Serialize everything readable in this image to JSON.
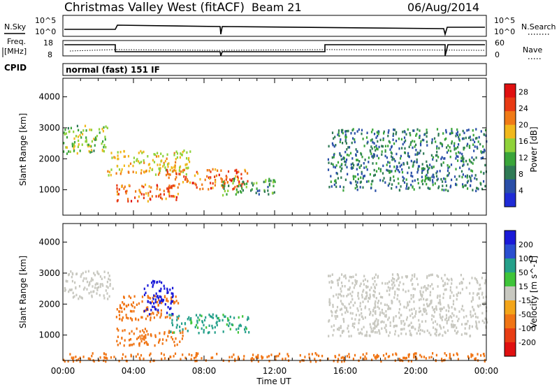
{
  "header": {
    "station": "Christmas Valley West (fitACF)",
    "beam": "Beam 21",
    "date": "06/Aug/2014"
  },
  "panel_labels": {
    "nsky": "N.Sky",
    "nsearch": "N.Search",
    "freq_line1": "Freq.",
    "freq_line2": "[MHz]",
    "nave": "Nave",
    "cpid": "CPID",
    "cpid_value": "normal (fast) 151 IF",
    "ylabel": "Slant Range [km]",
    "xlabel": "Time UT"
  },
  "noise_panel": {
    "left_ticks": [
      "10^5",
      "10^0"
    ],
    "right_ticks": [
      "10^5",
      "10^0"
    ]
  },
  "freq_panel": {
    "left_ticks": [
      "18",
      "8"
    ],
    "right_ticks": [
      "60",
      "0"
    ]
  },
  "colors": {
    "power": [
      "#1f2bd6",
      "#2a4fa8",
      "#2f7a55",
      "#3aa53a",
      "#8fd23a",
      "#f1b81c",
      "#f07a16",
      "#e83a14",
      "#e01010"
    ],
    "velocity": [
      "#1a1ad8",
      "#2a4fd0",
      "#25a08a",
      "#3fc43a",
      "#c8c8c0",
      "#f3a51a",
      "#f07515",
      "#e83d14",
      "#e01010"
    ]
  },
  "chart_data": [
    {
      "type": "heatmap",
      "title": "Power",
      "xlabel": "Time UT",
      "ylabel": "Slant Range [km]",
      "x_ticks": [
        "00:00",
        "04:00",
        "08:00",
        "12:00",
        "16:00",
        "20:00",
        "00:00"
      ],
      "xlim_hours": [
        0,
        24
      ],
      "y_ticks": [
        1000,
        2000,
        3000,
        4000
      ],
      "ylim_km": [
        180,
        4600
      ],
      "colorbar": {
        "label": "Power [dB]",
        "ticks": [
          4,
          8,
          12,
          16,
          20,
          24,
          28
        ],
        "range": [
          0,
          30
        ]
      },
      "echo_regions": [
        {
          "t": [
            0.0,
            2.5
          ],
          "r_km": [
            2200,
            3100
          ],
          "value": 14
        },
        {
          "t": [
            2.5,
            7.2
          ],
          "r_km": [
            1500,
            2300
          ],
          "value": 18
        },
        {
          "t": [
            3.0,
            6.5
          ],
          "r_km": [
            650,
            1200
          ],
          "value": 24
        },
        {
          "t": [
            5.8,
            10.5
          ],
          "r_km": [
            1050,
            1700
          ],
          "value": 24
        },
        {
          "t": [
            9.0,
            12.0
          ],
          "r_km": [
            850,
            1400
          ],
          "value": 10
        },
        {
          "t": [
            15.0,
            24.0
          ],
          "r_km": [
            1000,
            3000
          ],
          "value": 7
        }
      ]
    },
    {
      "type": "heatmap",
      "title": "Velocity",
      "xlabel": "Time UT",
      "ylabel": "Slant Range [km]",
      "x_ticks": [
        "00:00",
        "04:00",
        "08:00",
        "12:00",
        "16:00",
        "20:00",
        "00:00"
      ],
      "xlim_hours": [
        0,
        24
      ],
      "y_ticks": [
        1000,
        2000,
        3000,
        4000
      ],
      "ylim_km": [
        180,
        4600
      ],
      "colorbar": {
        "label": "Velocity [m s^-1]",
        "ticks": [
          200,
          100,
          50,
          15,
          -15,
          -50,
          -100,
          -200
        ]
      },
      "echo_regions": [
        {
          "t": [
            0.0,
            2.8
          ],
          "r_km": [
            2200,
            3100
          ],
          "value": 0
        },
        {
          "t": [
            3.0,
            7.0
          ],
          "r_km": [
            700,
            1250
          ],
          "value": -60
        },
        {
          "t": [
            3.0,
            6.5
          ],
          "r_km": [
            1500,
            2300
          ],
          "value": -60
        },
        {
          "t": [
            4.5,
            6.2
          ],
          "r_km": [
            1700,
            2800
          ],
          "value": 200
        },
        {
          "t": [
            6.0,
            10.5
          ],
          "r_km": [
            1100,
            1700
          ],
          "value": 40
        },
        {
          "t": [
            15.0,
            24.0
          ],
          "r_km": [
            1000,
            3000
          ],
          "value": 0
        },
        {
          "t": [
            0.0,
            24.0
          ],
          "r_km": [
            180,
            450
          ],
          "value": -60
        }
      ]
    }
  ]
}
